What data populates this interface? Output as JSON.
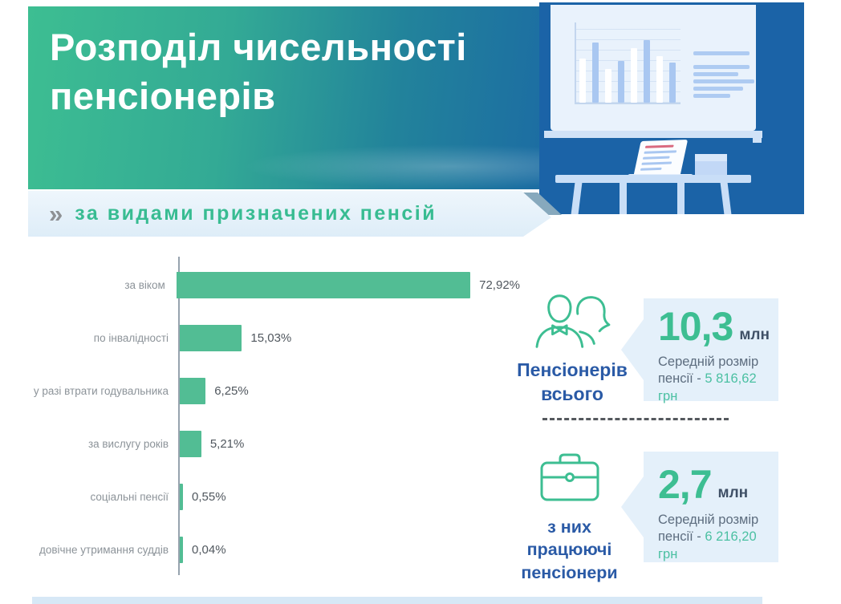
{
  "header": {
    "title_line1": "Розподіл чисельності",
    "title_line2": "пенсіонерів"
  },
  "ribbon": {
    "marker": "»",
    "text": "за видами призначених пенсій"
  },
  "chart_data": {
    "type": "bar",
    "orientation": "horizontal",
    "title": "Розподіл чисельності пенсіонерів",
    "subtitle": "за видами призначених пенсій",
    "categories": [
      "за віком",
      "по інвалідності",
      "у разі втрати годувальника",
      "за вислугу років",
      "соціальні пенсії",
      "довічне утримання суддів"
    ],
    "values": [
      72.92,
      15.03,
      6.25,
      5.21,
      0.55,
      0.04
    ],
    "value_labels": [
      "72,92%",
      "15,03%",
      "6,25%",
      "5,21%",
      "0,55%",
      "0,04%"
    ],
    "xlim": [
      0,
      100
    ],
    "bar_color": "#52BD94",
    "grid": false,
    "legend": false
  },
  "stats": {
    "total": {
      "icon": "pensioners-couple-icon",
      "label_line1": "Пенсіонерів",
      "label_line2": "всього",
      "value": "10,3",
      "unit": "млн",
      "desc_line1": "Середній розмір",
      "desc_line2_prefix": "пенсії - ",
      "desc_amount": "5 816,62 грн"
    },
    "working": {
      "icon": "briefcase-icon",
      "label_line1": "з них",
      "label_line2": "працюючі",
      "label_line3": "пенсіонери",
      "value": "2,7",
      "unit": "млн",
      "desc_line1": "Середній розмір",
      "desc_line2_prefix": "пенсії - ",
      "desc_amount": "6 216,20 грн"
    }
  },
  "colors": {
    "bar": "#52BD94",
    "accent_green": "#3DBE92",
    "amount_teal": "#4BC0A2",
    "label_blue": "#2A5AA6",
    "panel_blue": "#1B63A7",
    "callout_bg": "#E4F0FA"
  }
}
